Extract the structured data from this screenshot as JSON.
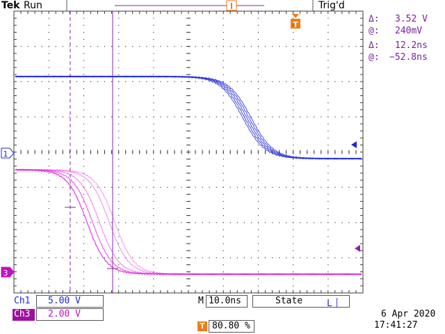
{
  "brand": "Tek",
  "run_state": "Run",
  "trigger_status": "Trig'd",
  "cursor_readout": {
    "voltage_delta": "3.52 V",
    "voltage_at": "240mV",
    "time_delta": "12.2ns",
    "time_at": "−52.8ns",
    "delta_symbol": "Δ:",
    "at_symbol": "@:"
  },
  "channels": [
    {
      "id": "Ch1",
      "scale": "5.00 V",
      "marker": "1",
      "color": "#1e28d6"
    },
    {
      "id": "Ch3",
      "scale": "2.00 V",
      "marker": "3",
      "color": "#e020e0"
    }
  ],
  "timebase": {
    "prefix": "M",
    "value": "10.0ns"
  },
  "trigger": {
    "source": "State",
    "slope": "L⎰",
    "level": "80.80 %",
    "marker_label": "T"
  },
  "date": "6 Apr 2020",
  "time": "17:41:27",
  "colors": {
    "ch1": "#1e28d6",
    "ch3": "#e020e0",
    "cursor": "#8a1fb0",
    "trigger_marker": "#f07a14",
    "grid": "#3a3a3a"
  }
}
